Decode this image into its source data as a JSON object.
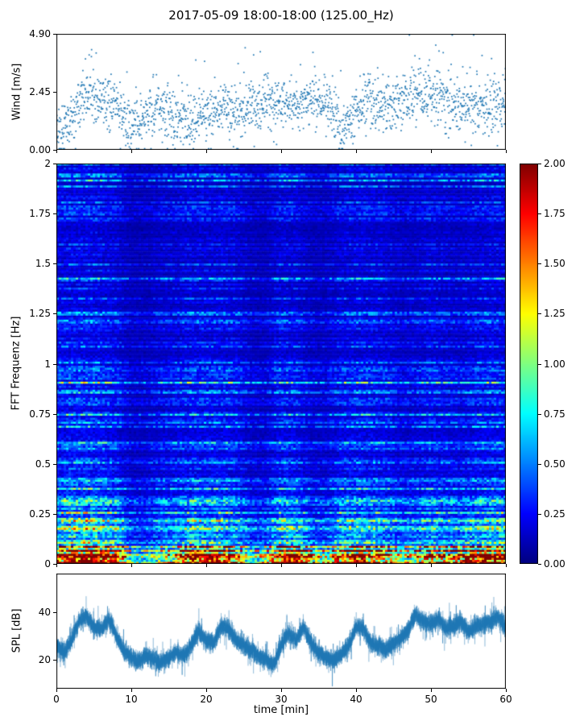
{
  "figure": {
    "title": "2017-05-09 18:00-18:00 (125.00_Hz)",
    "xlabel": "time [min]"
  },
  "axes": {
    "x": {
      "lim": [
        0,
        60
      ],
      "ticks": [
        {
          "label": "0",
          "value": 0
        },
        {
          "label": "10",
          "value": 10
        },
        {
          "label": "20",
          "value": 20
        },
        {
          "label": "30",
          "value": 30
        },
        {
          "label": "40",
          "value": 40
        },
        {
          "label": "50",
          "value": 50
        },
        {
          "label": "60",
          "value": 60
        }
      ]
    },
    "wind": {
      "ylabel": "Wind [m/s]",
      "ylim": [
        0,
        4.9
      ],
      "yticks": [
        {
          "label": "4.90",
          "value": 4.9
        },
        {
          "label": "2.45",
          "value": 2.45
        },
        {
          "label": "0.00",
          "value": 0
        }
      ]
    },
    "spectrogram": {
      "ylabel": "FFT Frequenz [Hz]",
      "ylim": [
        0,
        2
      ],
      "yticks": [
        {
          "label": "2",
          "value": 2
        },
        {
          "label": "1.75",
          "value": 1.75
        },
        {
          "label": "1.5",
          "value": 1.5
        },
        {
          "label": "1.25",
          "value": 1.25
        },
        {
          "label": "1",
          "value": 1
        },
        {
          "label": "0.75",
          "value": 0.75
        },
        {
          "label": "0.5",
          "value": 0.5
        },
        {
          "label": "0.25",
          "value": 0.25
        },
        {
          "label": "0",
          "value": 0
        }
      ]
    },
    "colorbar": {
      "lim": [
        0,
        2
      ],
      "cmap": "jet",
      "ticks": [
        {
          "label": "2.00",
          "value": 2
        },
        {
          "label": "1.75",
          "value": 1.75
        },
        {
          "label": "1.50",
          "value": 1.5
        },
        {
          "label": "1.25",
          "value": 1.25
        },
        {
          "label": "1.00",
          "value": 1
        },
        {
          "label": "0.75",
          "value": 0.75
        },
        {
          "label": "0.50",
          "value": 0.5
        },
        {
          "label": "0.25",
          "value": 0.25
        },
        {
          "label": "0.00",
          "value": 0
        }
      ]
    },
    "spl": {
      "ylabel": "SPL [dB]",
      "ylim": [
        8,
        56
      ],
      "yticks": [
        {
          "label": "40",
          "value": 40
        },
        {
          "label": "20",
          "value": 20
        }
      ]
    }
  },
  "chart_data": [
    {
      "type": "scatter",
      "name": "wind-speed",
      "title": "",
      "xlabel": "time [min]",
      "ylabel": "Wind [m/s]",
      "x_range": [
        0,
        60
      ],
      "ylim": [
        0,
        4.9
      ],
      "point_color": "#1f77b4",
      "n_points": 1900,
      "mean_curve_step_min": 2,
      "mean_curve": [
        0.9,
        1.4,
        2.2,
        2.1,
        1.7,
        1.1,
        1.5,
        1.7,
        1.5,
        1.1,
        1.6,
        1.8,
        1.6,
        1.8,
        2.0,
        1.9,
        2.0,
        2.2,
        1.8,
        1.0,
        1.7,
        2.0,
        1.8,
        2.1,
        2.4,
        2.3,
        2.0,
        1.7,
        2.0,
        1.7,
        1.8
      ],
      "spread": 0.55,
      "max_observed": 4.9,
      "min_observed": 0.05
    },
    {
      "type": "heatmap",
      "name": "fft-spectrogram",
      "xlabel": "time [min]",
      "ylabel": "FFT Frequenz [Hz]",
      "x_range": [
        0,
        60
      ],
      "y_range": [
        0,
        2
      ],
      "value_range": [
        0,
        2
      ],
      "cmap": "jet",
      "legend_position": "right-colorbar",
      "time_profile_step_min": 2,
      "time_profile": [
        1.4,
        1.5,
        1.5,
        1.4,
        1.2,
        0.7,
        0.75,
        1.0,
        1.1,
        1.3,
        1.25,
        1.3,
        1.2,
        0.8,
        0.75,
        1.3,
        1.2,
        0.8,
        0.8,
        1.2,
        1.3,
        1.25,
        1.2,
        0.9,
        1.0,
        1.2,
        1.1,
        1.0,
        1.2,
        1.3,
        1.25
      ],
      "low_freq_profile": [
        1.2,
        1.6,
        1.8,
        1.7,
        1.5,
        0.6,
        0.5,
        0.8,
        0.9,
        1.5,
        1.3,
        1.4,
        1.0,
        0.6,
        0.8,
        1.5,
        1.6,
        1.0,
        0.7,
        1.3,
        1.5,
        1.3,
        1.0,
        0.8,
        0.9,
        1.2,
        1.0,
        1.3,
        1.5,
        1.6,
        1.4
      ],
      "intensity_vs_freq": "mostly 0.1-0.3 (dark blue) above 1 Hz with sparse cyan streaks; increasing cyan/green/yellow horizontal streaks below 0.5 Hz; saturated red band (1.5-2.0) below ~0.08 Hz"
    },
    {
      "type": "line",
      "name": "spl-level",
      "xlabel": "time [min]",
      "ylabel": "SPL [dB]",
      "x_range": [
        0,
        60
      ],
      "ylim": [
        8,
        56
      ],
      "line_color": "#1f77b4",
      "curve_step_min": 1,
      "curve": [
        26,
        23,
        28,
        36,
        38,
        34,
        33,
        37,
        30,
        24,
        21,
        19,
        22,
        20,
        19,
        21,
        23,
        22,
        26,
        32,
        28,
        27,
        34,
        33,
        28,
        26,
        24,
        22,
        20,
        18,
        26,
        31,
        28,
        34,
        27,
        23,
        21,
        20,
        22,
        26,
        34,
        33,
        27,
        26,
        24,
        27,
        29,
        33,
        39,
        36,
        35,
        37,
        33,
        34,
        36,
        32,
        34,
        35,
        36,
        38,
        33
      ],
      "noise_band_db": 3
    }
  ]
}
